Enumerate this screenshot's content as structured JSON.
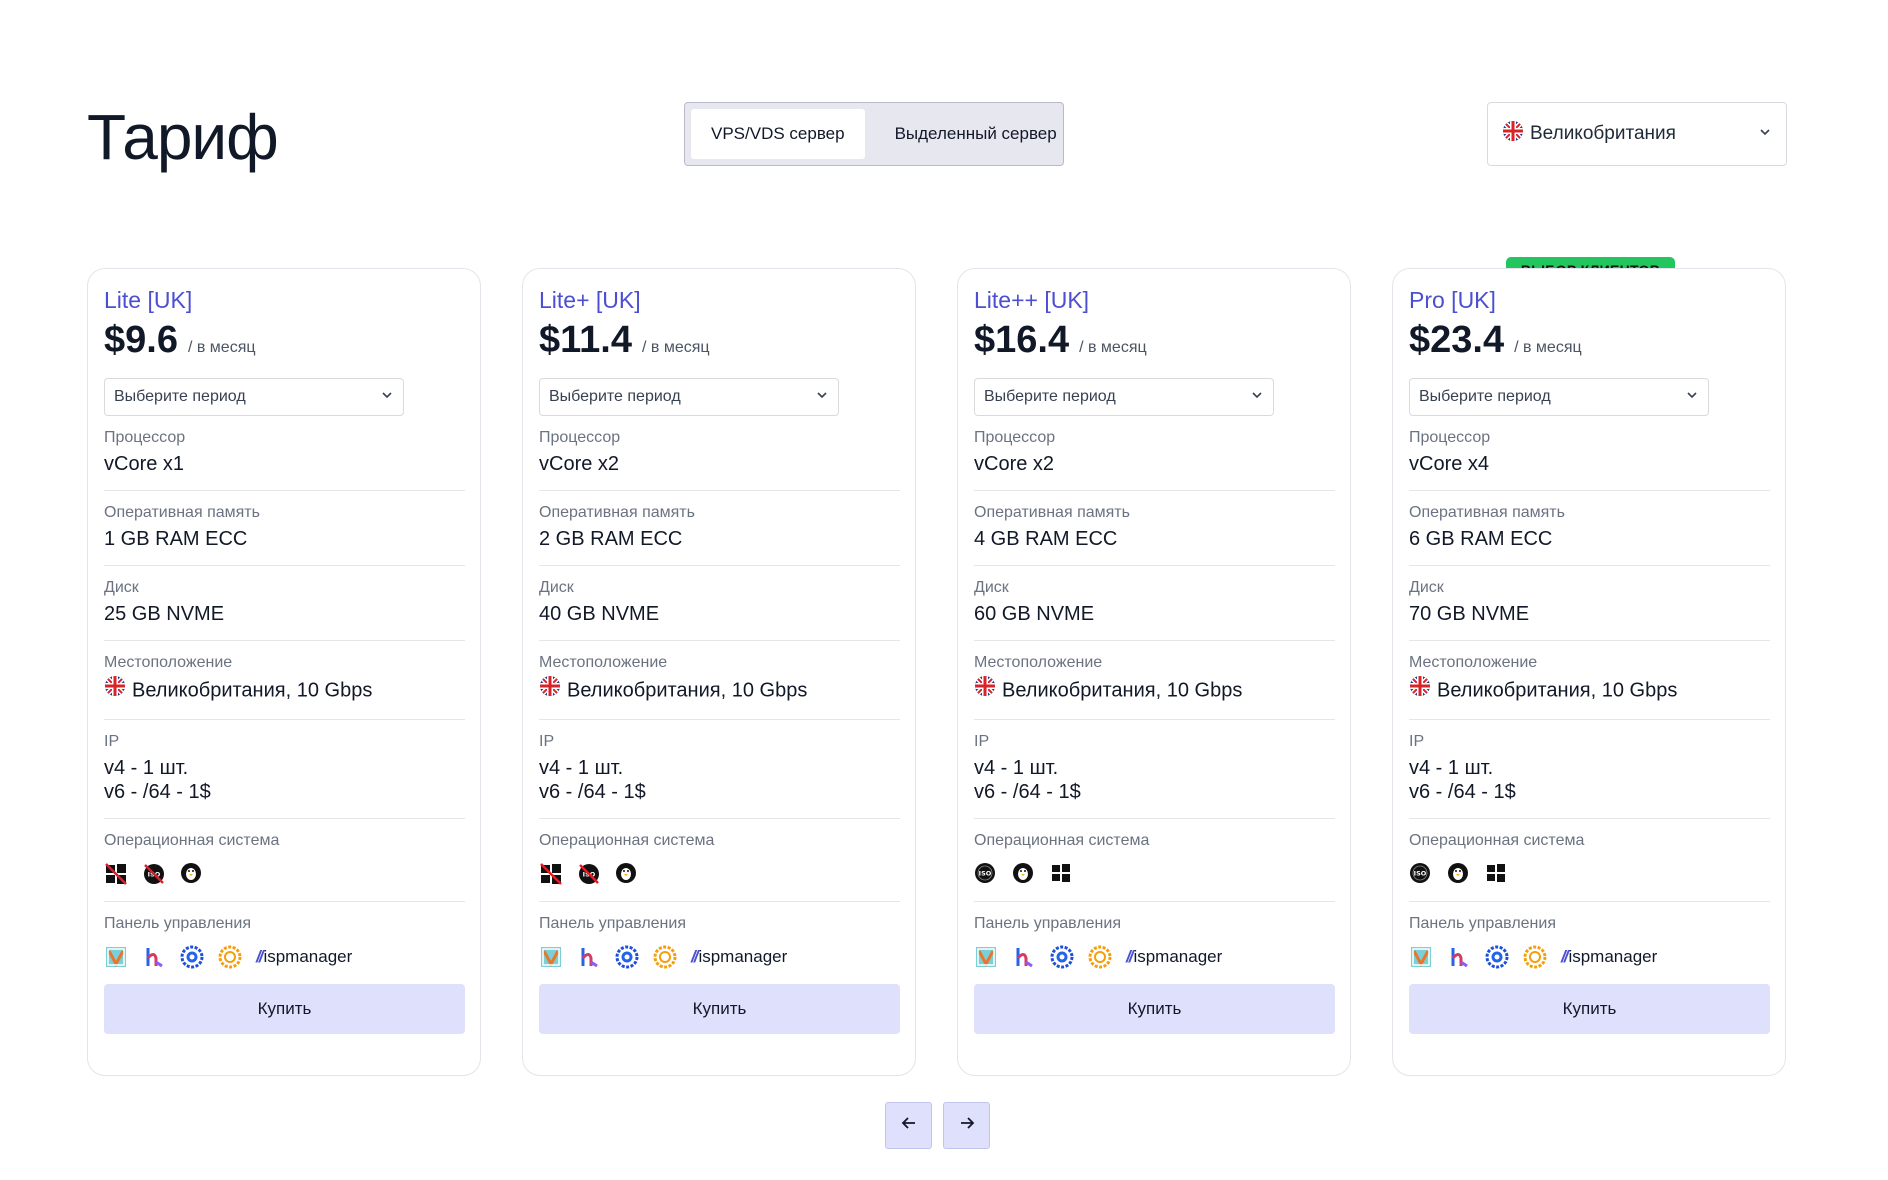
{
  "page": {
    "title": "Тариф"
  },
  "server_type": {
    "options": [
      "VPS/VDS сервер",
      "Выделенный сервер"
    ],
    "selected": "VPS/VDS сервер"
  },
  "country_select": {
    "value": "Великобритания",
    "flag_icon": "uk-flag-icon"
  },
  "labels": {
    "per_month": "/ в месяц",
    "period_placeholder": "Выберите период",
    "cpu": "Процессор",
    "ram": "Оперативная память",
    "disk": "Диск",
    "location": "Местоположение",
    "ip": "IP",
    "os": "Операционная система",
    "panel": "Панель управления",
    "buy": "Купить",
    "ispmanager": "ispmanager"
  },
  "badge": {
    "text": "ВЫБОР КЛИЕНТОВ",
    "color": "#22c55e"
  },
  "plans": [
    {
      "name": "Lite [UK]",
      "price": "$9.6",
      "cpu": "vCore x1",
      "ram": "1 GB RAM ECC",
      "disk": "25 GB NVME",
      "location": "Великобритания, 10 Gbps",
      "ip_v4": "v4 - 1 шт.",
      "ip_v6": "v6 - /64 - 1$",
      "os_icons": [
        "windows-unavailable-icon",
        "iso-unavailable-icon",
        "linux-icon"
      ]
    },
    {
      "name": "Lite+ [UK]",
      "price": "$11.4",
      "cpu": "vCore x2",
      "ram": "2 GB RAM ECC",
      "disk": "40 GB NVME",
      "location": "Великобритания, 10 Gbps",
      "ip_v4": "v4 - 1 шт.",
      "ip_v6": "v6 - /64 - 1$",
      "os_icons": [
        "windows-unavailable-icon",
        "iso-unavailable-icon",
        "linux-icon"
      ]
    },
    {
      "name": "Lite++ [UK]",
      "price": "$16.4",
      "cpu": "vCore x2",
      "ram": "4 GB RAM ECC",
      "disk": "60 GB NVME",
      "location": "Великобритания, 10 Gbps",
      "ip_v4": "v4 - 1 шт.",
      "ip_v6": "v6 - /64 - 1$",
      "os_icons": [
        "iso-icon",
        "linux-icon",
        "windows-icon"
      ]
    },
    {
      "name": "Pro [UK]",
      "price": "$23.4",
      "cpu": "vCore x4",
      "ram": "6 GB RAM ECC",
      "disk": "70 GB NVME",
      "location": "Великобритания, 10 Gbps",
      "ip_v4": "v4 - 1 шт.",
      "ip_v6": "v6 - /64 - 1$",
      "os_icons": [
        "iso-icon",
        "linux-icon",
        "windows-icon"
      ]
    }
  ],
  "panel_icons": [
    "vestacp-icon",
    "hestiacp-icon",
    "cyberpanel-icon",
    "aapanel-icon",
    "ispmanager-icon"
  ],
  "pagination": {
    "prev_icon": "arrow-left-icon",
    "next_icon": "arrow-right-icon"
  },
  "colors": {
    "accent": "#4c4fd1",
    "button_bg": "#dfe0fb",
    "badge": "#22c55e"
  }
}
